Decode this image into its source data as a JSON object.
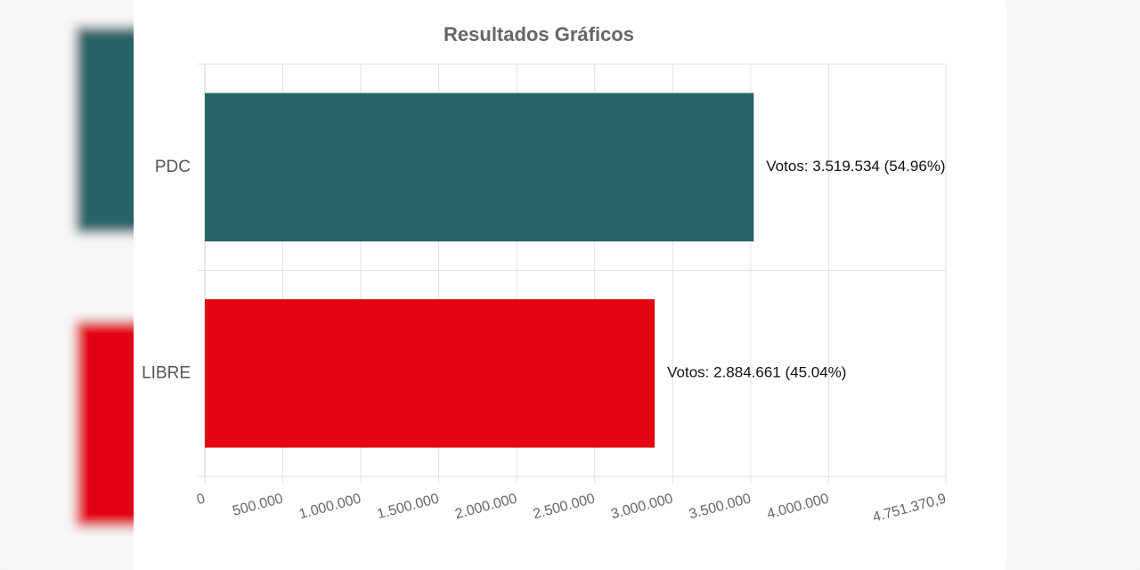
{
  "chart_data": {
    "type": "bar",
    "orientation": "horizontal",
    "title": "Resultados Gráficos",
    "categories": [
      "PDC",
      "LIBRE"
    ],
    "values": [
      3519534,
      2884661
    ],
    "value_labels": [
      "Votos: 3.519.534 (54.96%)",
      "Votos: 2.884.661 (45.04%)"
    ],
    "colors": [
      "#276468",
      "#e30613"
    ],
    "xlim": [
      0,
      4751370.9
    ],
    "xticks": [
      0,
      {
        "value": 500000,
        "label": "500.000"
      },
      {
        "value": 1000000,
        "label": "1.000.000"
      },
      {
        "value": 1500000,
        "label": "1.500.000"
      },
      {
        "value": 2000000,
        "label": "2.000.000"
      },
      {
        "value": 2500000,
        "label": "2.500.000"
      },
      {
        "value": 3000000,
        "label": "3.000.000"
      },
      {
        "value": 3500000,
        "label": "3.500.000"
      },
      {
        "value": 4000000,
        "label": "4.000.000"
      },
      {
        "value": 4751370.9,
        "label": "4.751.370,9"
      }
    ],
    "grid": true
  }
}
